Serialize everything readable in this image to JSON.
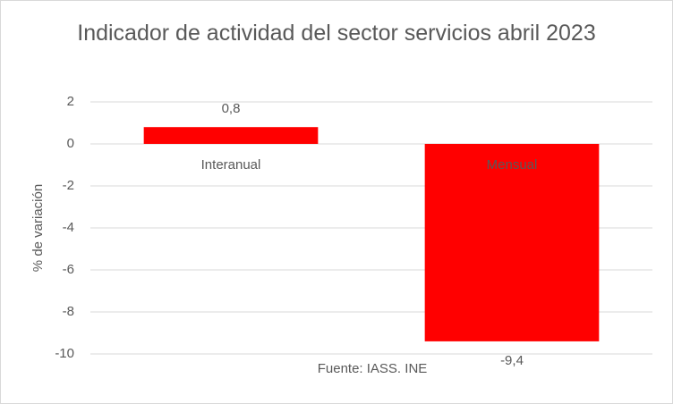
{
  "chart_data": {
    "type": "bar",
    "title": "Indicador de actividad del sector servicios abril 2023",
    "y_label": "% de variación",
    "categories": [
      "Interanual",
      "Mensual"
    ],
    "values": [
      0.8,
      -9.4
    ],
    "value_labels": [
      "0,8",
      "-9,4"
    ],
    "color": "#ff0000",
    "ylim": [
      -10,
      2
    ],
    "yticks": [
      2,
      0,
      -2,
      -4,
      -6,
      -8,
      -10
    ],
    "grid": true,
    "source": "Fuente: IASS. INE"
  }
}
